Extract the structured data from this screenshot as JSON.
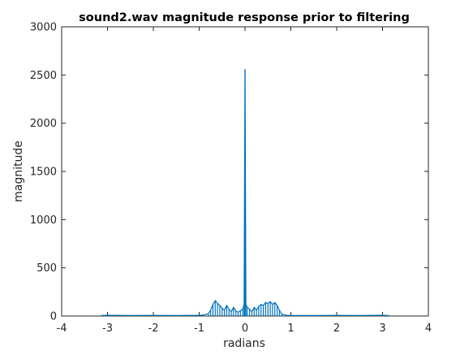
{
  "chart_data": {
    "type": "line",
    "title": "sound2.wav magnitude response prior to filtering",
    "xlabel": "radians",
    "ylabel": "magnitude",
    "xlim": [
      -4,
      4
    ],
    "ylim": [
      0,
      3000
    ],
    "xticks": [
      "-4",
      "-3",
      "-2",
      "-1",
      "0",
      "1",
      "2",
      "3",
      "4"
    ],
    "yticks": [
      "0",
      "500",
      "1000",
      "1500",
      "2000",
      "2500",
      "3000"
    ],
    "grid": false,
    "series_color": "#0072BD",
    "series": [
      {
        "x": [
          -3.14,
          -3.0,
          -2.5,
          -2.0,
          -1.5,
          -1.0,
          -0.9,
          -0.8,
          -0.75,
          -0.7,
          -0.65,
          -0.6,
          -0.55,
          -0.5,
          -0.45,
          -0.4,
          -0.35,
          -0.3,
          -0.25,
          -0.2,
          -0.15,
          -0.1,
          -0.05,
          -0.02,
          0.0,
          0.02,
          0.05,
          0.1,
          0.15,
          0.2,
          0.25,
          0.3,
          0.35,
          0.4,
          0.45,
          0.5,
          0.55,
          0.6,
          0.65,
          0.7,
          0.75,
          0.8,
          0.9,
          1.0,
          1.5,
          2.0,
          2.5,
          3.0,
          3.14
        ],
        "y": [
          5,
          8,
          6,
          7,
          5,
          8,
          10,
          25,
          60,
          120,
          160,
          130,
          110,
          80,
          60,
          110,
          70,
          45,
          90,
          50,
          40,
          55,
          70,
          120,
          2560,
          120,
          90,
          70,
          45,
          90,
          60,
          100,
          120,
          110,
          140,
          130,
          150,
          120,
          140,
          110,
          60,
          20,
          8,
          6,
          5,
          7,
          6,
          8,
          5
        ]
      }
    ]
  }
}
